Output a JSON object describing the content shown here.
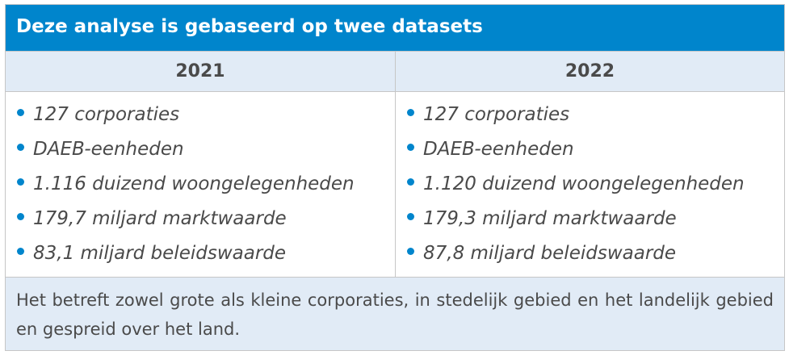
{
  "title": "Deze analyse is gebaseerd op twee datasets",
  "accent": "#0085cc",
  "columns": [
    {
      "year": "2021",
      "items": [
        "127 corporaties",
        "DAEB-eenheden",
        "1.116 duizend woongelegenheden",
        "179,7 miljard marktwaarde",
        "83,1 miljard beleidswaarde"
      ]
    },
    {
      "year": "2022",
      "items": [
        "127 corporaties",
        "DAEB-eenheden",
        "1.120 duizend woongelegenheden",
        "179,3 miljard marktwaarde",
        "87,8 miljard beleidswaarde"
      ]
    }
  ],
  "footer": "Het betreft zowel grote als kleine corporaties, in stedelijk gebied en het landelijk gebied en gespreid over het land."
}
